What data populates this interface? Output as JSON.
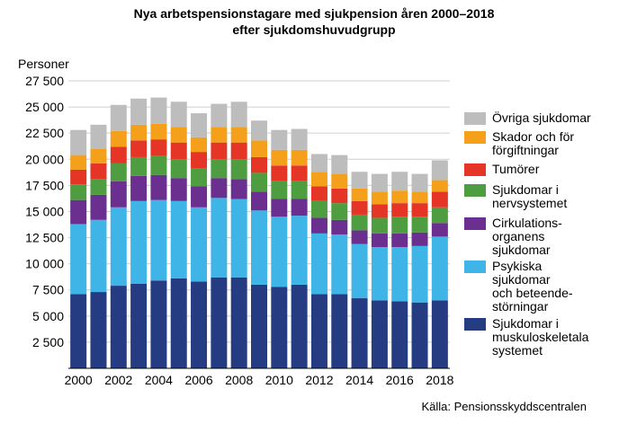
{
  "chart_data": {
    "type": "bar",
    "stacked": true,
    "title": [
      "Nya arbetspensionstagare med sjukpension åren 2000–2018",
      "efter sjukdomshuvudgrupp"
    ],
    "ylabel": "Personer",
    "xlabel": "",
    "ylim": [
      0,
      27500
    ],
    "yticks": [
      2500,
      5000,
      7500,
      10000,
      12500,
      15000,
      17500,
      20000,
      22500,
      25000,
      27500
    ],
    "ytick_labels": [
      "2 500",
      "5 000",
      "7 500",
      "10 000",
      "12 500",
      "15 000",
      "17 500",
      "20 000",
      "22 500",
      "25 000",
      "27 500"
    ],
    "categories": [
      "2000",
      "2001",
      "2002",
      "2003",
      "2004",
      "2005",
      "2006",
      "2007",
      "2008",
      "2009",
      "2010",
      "2011",
      "2012",
      "2013",
      "2014",
      "2015",
      "2016",
      "2017",
      "2018"
    ],
    "xtick_labels": [
      "2000",
      "",
      "2002",
      "",
      "2004",
      "",
      "2006",
      "",
      "2008",
      "",
      "2010",
      "",
      "2012",
      "",
      "2014",
      "",
      "2016",
      "",
      "2018"
    ],
    "grid": "horizontal",
    "legend_position": "right",
    "series": [
      {
        "name": [
          "Sjukdomar i",
          "muskuloskeletala",
          "systemet"
        ],
        "color": "#253c82",
        "values": [
          7100,
          7300,
          7900,
          8100,
          8400,
          8600,
          8300,
          8700,
          8700,
          8000,
          7800,
          8000,
          7100,
          7100,
          6700,
          6500,
          6400,
          6300,
          6500
        ]
      },
      {
        "name": [
          "Psykiska",
          "sjukdomar",
          "och beteende-",
          "störningar"
        ],
        "color": "#3fb4e6",
        "values": [
          6700,
          6900,
          7500,
          7900,
          7700,
          7400,
          7100,
          7600,
          7500,
          7100,
          6700,
          6600,
          5800,
          5700,
          5200,
          5100,
          5200,
          5400,
          6100
        ]
      },
      {
        "name": [
          "Cirkulations-",
          "organens",
          "sjukdomar"
        ],
        "color": "#6a2f8f",
        "values": [
          2300,
          2400,
          2500,
          2400,
          2400,
          2200,
          2000,
          1900,
          1900,
          1800,
          1700,
          1600,
          1500,
          1400,
          1300,
          1300,
          1300,
          1300,
          1300
        ]
      },
      {
        "name": [
          "Sjukdomar i",
          "nervsystemet"
        ],
        "color": "#4e9e41",
        "values": [
          1500,
          1500,
          1700,
          1800,
          1800,
          1800,
          1700,
          1800,
          1900,
          1800,
          1700,
          1700,
          1600,
          1600,
          1500,
          1500,
          1600,
          1500,
          1500
        ]
      },
      {
        "name": [
          "Tumörer"
        ],
        "color": "#e53527",
        "values": [
          1400,
          1500,
          1600,
          1600,
          1600,
          1600,
          1600,
          1600,
          1600,
          1500,
          1500,
          1500,
          1400,
          1400,
          1300,
          1300,
          1300,
          1300,
          1500
        ]
      },
      {
        "name": [
          "Skador och för",
          "förgiftningar"
        ],
        "color": "#f5a01a",
        "values": [
          1400,
          1400,
          1500,
          1500,
          1500,
          1500,
          1400,
          1500,
          1500,
          1600,
          1500,
          1500,
          1400,
          1400,
          1200,
          1200,
          1200,
          1100,
          1100
        ]
      },
      {
        "name": [
          "Övriga sjukdomar"
        ],
        "color": "#bdbdbd",
        "values": [
          2400,
          2300,
          2500,
          2500,
          2500,
          2400,
          2300,
          2200,
          2400,
          1900,
          1900,
          2000,
          1700,
          1800,
          1600,
          1700,
          1800,
          1700,
          1900
        ]
      }
    ],
    "source": "Källa: Pensionsskyddscentralen"
  }
}
